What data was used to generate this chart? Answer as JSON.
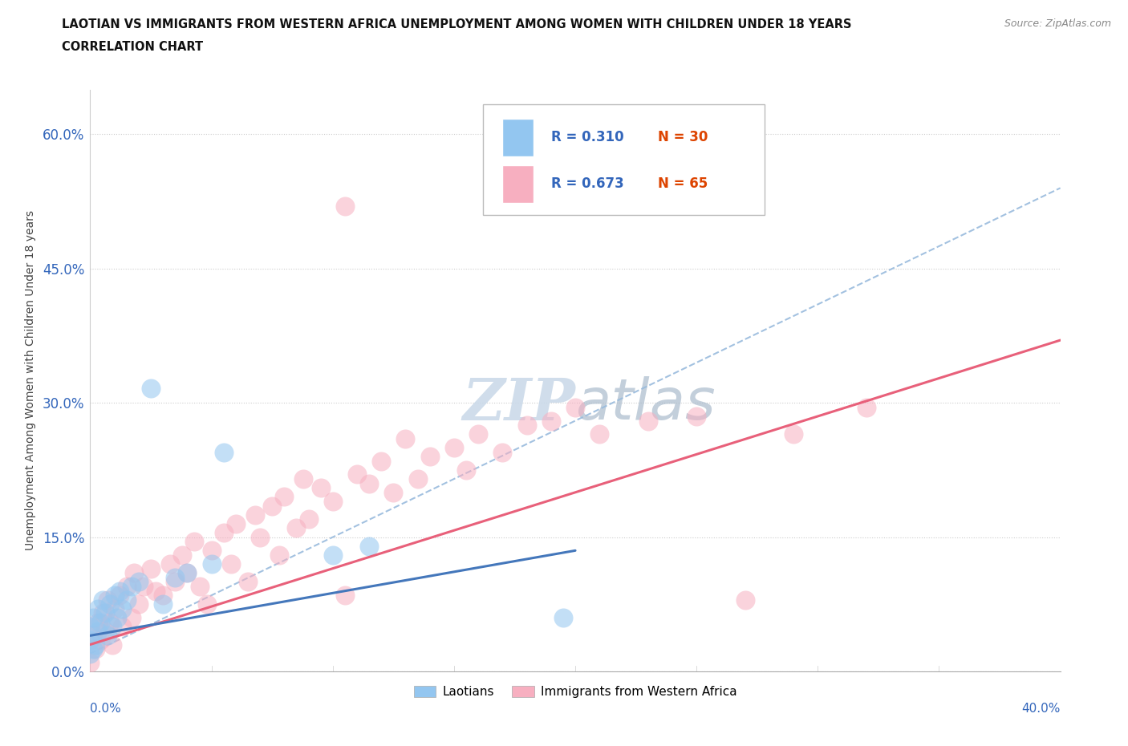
{
  "title_line1": "LAOTIAN VS IMMIGRANTS FROM WESTERN AFRICA UNEMPLOYMENT AMONG WOMEN WITH CHILDREN UNDER 18 YEARS",
  "title_line2": "CORRELATION CHART",
  "source": "Source: ZipAtlas.com",
  "xlabel_bottom_left": "0.0%",
  "xlabel_bottom_right": "40.0%",
  "ylabel": "Unemployment Among Women with Children Under 18 years",
  "ytick_labels": [
    "0.0%",
    "15.0%",
    "30.0%",
    "45.0%",
    "60.0%"
  ],
  "ytick_values": [
    0.0,
    0.15,
    0.3,
    0.45,
    0.6
  ],
  "xmin": 0.0,
  "xmax": 0.4,
  "ymin": 0.0,
  "ymax": 0.65,
  "legend1_R": "0.310",
  "legend1_N": "30",
  "legend2_R": "0.673",
  "legend2_N": "65",
  "laotian_color": "#93c6f0",
  "western_africa_color": "#f7afc0",
  "laotian_line_color": "#4477bb",
  "western_africa_line_color": "#e8607a",
  "dashed_line_color": "#99bbdd",
  "r_text_color": "#3366bb",
  "n_text_color": "#dd4400",
  "background_color": "#ffffff",
  "watermark_color": "#c8d8e8",
  "title_color": "#111111",
  "source_color": "#888888",
  "ytick_color": "#3366bb",
  "xtick_color": "#3366bb"
}
